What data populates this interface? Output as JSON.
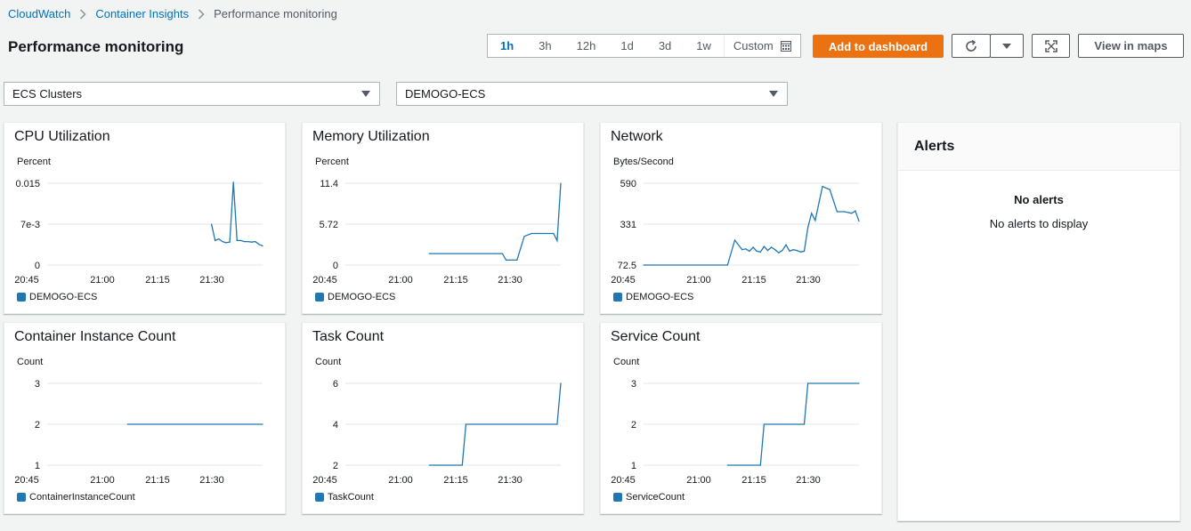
{
  "breadcrumb": [
    "CloudWatch",
    "Container Insights",
    "Performance monitoring"
  ],
  "page_title": "Performance monitoring",
  "time_range": {
    "options": [
      "1h",
      "3h",
      "12h",
      "1d",
      "3d",
      "1w"
    ],
    "selected": "1h",
    "custom_label": "Custom"
  },
  "toolbar": {
    "add_to_dashboard": "Add to dashboard",
    "view_in_maps": "View in maps"
  },
  "filters": {
    "resource_type": "ECS Clusters",
    "cluster": "DEMOGO-ECS"
  },
  "colors": {
    "accent": "#0073bb",
    "primary_button": "#ec7211",
    "series": "#1f77b4"
  },
  "icons": [
    "chevron-right-icon",
    "calendar-icon",
    "refresh-icon",
    "caret-down-icon",
    "fullscreen-icon"
  ],
  "alerts": {
    "title": "Alerts",
    "empty_title": "No alerts",
    "empty_text": "No alerts to display"
  },
  "chart_data": [
    {
      "type": "line",
      "title": "CPU Utilization",
      "ylabel": "Percent",
      "yticks": [
        "0.015",
        "7e-3",
        "0"
      ],
      "ylim": [
        0,
        0.015
      ],
      "xticks": [
        "20:45",
        "21:00",
        "21:15",
        "21:30"
      ],
      "series": [
        {
          "name": "DEMOGO-ECS",
          "x": [
            "21:30",
            "21:31",
            "21:32",
            "21:33",
            "21:34",
            "21:35",
            "21:36",
            "21:37",
            "21:38",
            "21:39",
            "21:40",
            "21:41",
            "21:42",
            "21:43",
            "21:44"
          ],
          "values": [
            0.0075,
            0.0045,
            0.0048,
            0.0043,
            0.0041,
            0.0042,
            0.0152,
            0.0045,
            0.0045,
            0.0043,
            0.0043,
            0.0042,
            0.0043,
            0.0038,
            0.0035
          ]
        }
      ]
    },
    {
      "type": "line",
      "title": "Memory Utilization",
      "ylabel": "Percent",
      "yticks": [
        "11.4",
        "5.72",
        "0"
      ],
      "ylim": [
        0,
        11.4
      ],
      "xticks": [
        "20:45",
        "21:00",
        "21:15",
        "21:30"
      ],
      "series": [
        {
          "name": "DEMOGO-ECS",
          "x": [
            "21:08",
            "21:10",
            "21:12",
            "21:14",
            "21:16",
            "21:18",
            "21:20",
            "21:22",
            "21:24",
            "21:26",
            "21:28",
            "21:29",
            "21:31",
            "21:32",
            "21:34",
            "21:36",
            "21:38",
            "21:40",
            "21:42",
            "21:43",
            "21:44"
          ],
          "values": [
            1.6,
            1.6,
            1.6,
            1.6,
            1.6,
            1.6,
            1.6,
            1.6,
            1.6,
            1.6,
            1.6,
            0.7,
            0.7,
            0.7,
            4.0,
            4.4,
            4.4,
            4.4,
            4.4,
            3.4,
            11.4
          ]
        }
      ]
    },
    {
      "type": "line",
      "title": "Network",
      "ylabel": "Bytes/Second",
      "yticks": [
        "590",
        "331",
        "72.5"
      ],
      "ylim": [
        72.5,
        590
      ],
      "xticks": [
        "20:45",
        "21:00",
        "21:15",
        "21:30"
      ],
      "series": [
        {
          "name": "DEMOGO-ECS",
          "x": [
            "20:45",
            "21:08",
            "21:10",
            "21:12",
            "21:13",
            "21:14",
            "21:15",
            "21:16",
            "21:17",
            "21:18",
            "21:19",
            "21:20",
            "21:21",
            "21:22",
            "21:23",
            "21:24",
            "21:25",
            "21:26",
            "21:27",
            "21:28",
            "21:29",
            "21:30",
            "21:31",
            "21:32",
            "21:34",
            "21:36",
            "21:38",
            "21:40",
            "21:42",
            "21:43",
            "21:44"
          ],
          "values": [
            72.5,
            72.5,
            230,
            170,
            175,
            160,
            185,
            160,
            155,
            190,
            165,
            185,
            170,
            150,
            165,
            200,
            160,
            170,
            165,
            155,
            160,
            310,
            400,
            355,
            570,
            550,
            410,
            410,
            400,
            415,
            350
          ]
        }
      ]
    },
    {
      "type": "line",
      "title": "Container Instance Count",
      "ylabel": "Count",
      "yticks": [
        "3",
        "2",
        "1"
      ],
      "ylim": [
        1,
        3
      ],
      "xticks": [
        "20:45",
        "21:00",
        "21:15",
        "21:30"
      ],
      "series": [
        {
          "name": "ContainerInstanceCount",
          "x": [
            "21:07",
            "21:44"
          ],
          "values": [
            2,
            2
          ]
        }
      ]
    },
    {
      "type": "line",
      "title": "Task Count",
      "ylabel": "Count",
      "yticks": [
        "6",
        "4",
        "2"
      ],
      "ylim": [
        2,
        6
      ],
      "xticks": [
        "20:45",
        "21:00",
        "21:15",
        "21:30"
      ],
      "series": [
        {
          "name": "TaskCount",
          "x": [
            "21:08",
            "21:17",
            "21:18",
            "21:43",
            "21:44"
          ],
          "values": [
            2,
            2,
            4,
            4,
            6
          ]
        }
      ]
    },
    {
      "type": "line",
      "title": "Service Count",
      "ylabel": "Count",
      "yticks": [
        "3",
        "2",
        "1"
      ],
      "ylim": [
        1,
        3
      ],
      "xticks": [
        "20:45",
        "21:00",
        "21:15",
        "21:30"
      ],
      "series": [
        {
          "name": "ServiceCount",
          "x": [
            "21:08",
            "21:17",
            "21:18",
            "21:29",
            "21:30",
            "21:44"
          ],
          "values": [
            1,
            1,
            2,
            2,
            3,
            3
          ]
        }
      ]
    }
  ]
}
